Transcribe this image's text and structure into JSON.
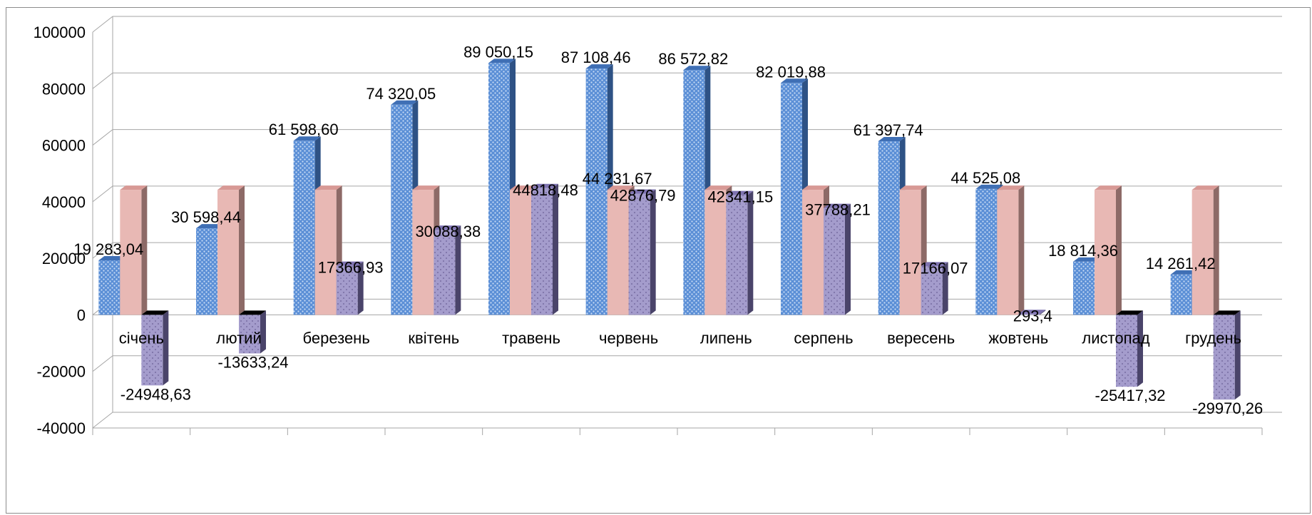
{
  "chart_data": {
    "type": "bar",
    "categories": [
      "січень",
      "лютий",
      "березень",
      "квітень",
      "травень",
      "червень",
      "липень",
      "серпень",
      "вересень",
      "жовтень",
      "листопад",
      "грудень"
    ],
    "series": [
      {
        "values": [
          19283.04,
          30598.44,
          61598.6,
          74320.05,
          89050.15,
          87108.46,
          86572.82,
          82019.88,
          61397.74,
          44525.08,
          18814.36,
          14261.42
        ],
        "labels": [
          "19 283,04",
          "30 598,44",
          "61 598,60",
          "74 320,05",
          "89 050,15",
          "87 108,46",
          "86 572,82",
          "82 019,88",
          "61 397,74",
          "44 525,08",
          "18 814,36",
          "14 261,42"
        ],
        "color": "#5b8fd6"
      },
      {
        "values": [
          44231.67,
          44231.67,
          44231.67,
          44231.67,
          44231.67,
          44231.67,
          44231.67,
          44231.67,
          44231.67,
          44231.67,
          44231.67,
          44231.67
        ],
        "labels": [
          "",
          "",
          "",
          "",
          "",
          "44 231,67",
          "",
          "",
          "",
          "",
          "",
          ""
        ],
        "color": "#e8b8b4"
      },
      {
        "values": [
          -24948.63,
          -13633.24,
          17366.93,
          30088.38,
          44818.48,
          42876.79,
          42341.15,
          37788.21,
          17166.07,
          293.4,
          -25417.32,
          -29970.26
        ],
        "labels": [
          "-24948,63",
          "-13633,24",
          "17366,93",
          "30088,38",
          "44818,48",
          "42876,79",
          "42341,15",
          "37788,21",
          "17166,07",
          "293,4",
          "-25417,32",
          "-29970,26"
        ],
        "color": "#a49ccc"
      }
    ],
    "yticks": [
      100000,
      80000,
      60000,
      40000,
      20000,
      0,
      -20000,
      -40000
    ],
    "ylim": [
      -40000,
      100000
    ],
    "grid": true,
    "title": "",
    "xlabel": "",
    "ylabel": ""
  }
}
